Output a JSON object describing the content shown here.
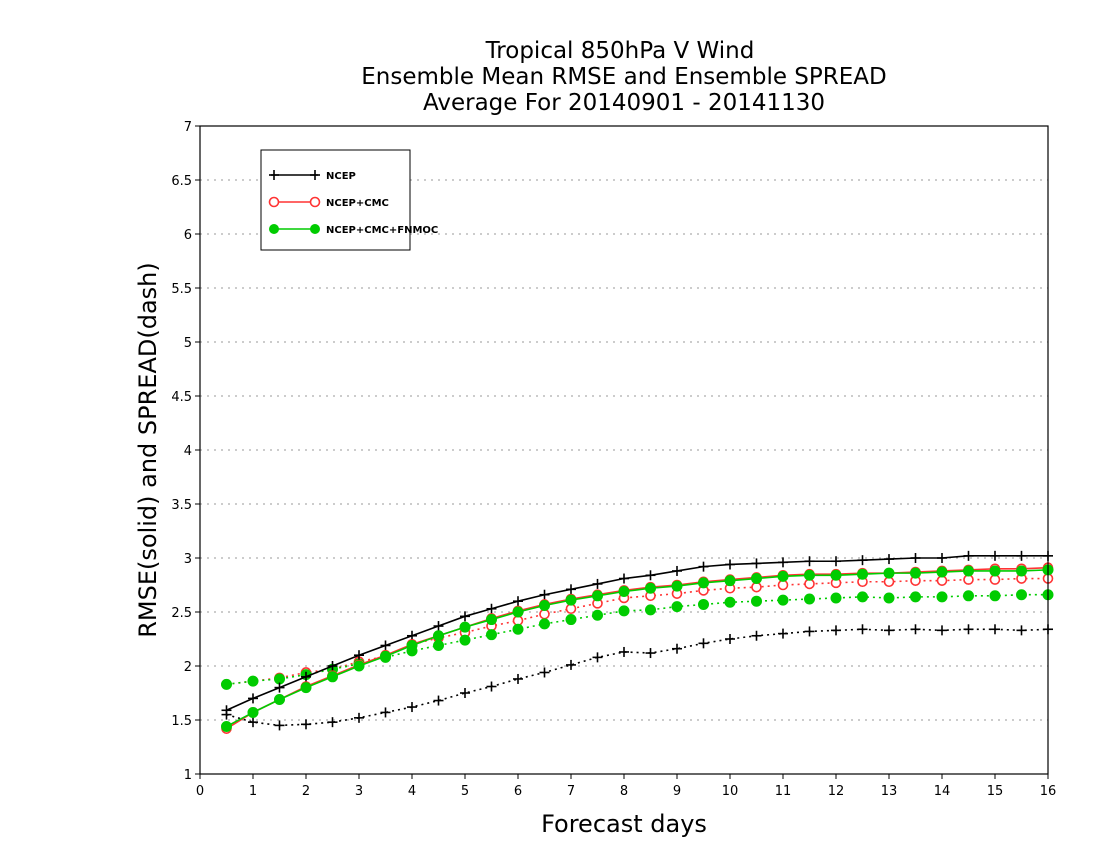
{
  "chart_data": {
    "type": "line",
    "title": [
      "Tropical 850hPa V Wind",
      "Ensemble Mean RMSE and Ensemble SPREAD",
      "Average For 20140901 - 20141130"
    ],
    "xlabel": "Forecast days",
    "ylabel": "RMSE(solid) and SPREAD(dash)",
    "xlim": [
      0,
      16
    ],
    "ylim": [
      1,
      7
    ],
    "xticks": [
      0,
      1,
      2,
      3,
      4,
      5,
      6,
      7,
      8,
      9,
      10,
      11,
      12,
      13,
      14,
      15,
      16
    ],
    "yticks": [
      "1",
      "1.5",
      "2",
      "2.5",
      "3",
      "3.5",
      "4",
      "4.5",
      "5",
      "5.5",
      "6",
      "6.5",
      "7"
    ],
    "grid": "horizontal dotted",
    "legend_placement": "top-left",
    "x": [
      0.5,
      1,
      1.5,
      2,
      2.5,
      3,
      3.5,
      4,
      4.5,
      5,
      5.5,
      6,
      6.5,
      7,
      7.5,
      8,
      8.5,
      9,
      9.5,
      10,
      10.5,
      11,
      11.5,
      12,
      12.5,
      13,
      13.5,
      14,
      14.5,
      15,
      15.5,
      16
    ],
    "series": [
      {
        "name": "NCEP",
        "kind": "RMSE",
        "style": "solid",
        "marker": "plus",
        "color": "#000000",
        "values": [
          1.59,
          1.7,
          1.8,
          1.9,
          2.0,
          2.1,
          2.19,
          2.28,
          2.37,
          2.46,
          2.53,
          2.6,
          2.66,
          2.71,
          2.76,
          2.81,
          2.84,
          2.88,
          2.92,
          2.94,
          2.95,
          2.96,
          2.97,
          2.97,
          2.98,
          2.99,
          3.0,
          3.0,
          3.02,
          3.02,
          3.02,
          3.02
        ]
      },
      {
        "name": "NCEP+CMC",
        "kind": "RMSE",
        "style": "solid",
        "marker": "open-circle",
        "color": "#ff3333",
        "values": [
          1.42,
          1.57,
          1.69,
          1.81,
          1.91,
          2.01,
          2.1,
          2.2,
          2.28,
          2.36,
          2.44,
          2.51,
          2.57,
          2.62,
          2.66,
          2.7,
          2.73,
          2.75,
          2.78,
          2.8,
          2.82,
          2.84,
          2.85,
          2.85,
          2.86,
          2.86,
          2.87,
          2.88,
          2.89,
          2.9,
          2.9,
          2.91
        ]
      },
      {
        "name": "NCEP+CMC+FNMOC",
        "kind": "RMSE",
        "style": "solid",
        "marker": "filled-circle",
        "color": "#00cc00",
        "values": [
          1.44,
          1.57,
          1.69,
          1.8,
          1.9,
          2.0,
          2.09,
          2.19,
          2.28,
          2.36,
          2.43,
          2.5,
          2.56,
          2.61,
          2.65,
          2.69,
          2.72,
          2.74,
          2.77,
          2.79,
          2.81,
          2.83,
          2.84,
          2.84,
          2.85,
          2.86,
          2.86,
          2.87,
          2.88,
          2.88,
          2.88,
          2.89
        ]
      },
      {
        "name": "NCEP",
        "kind": "SPREAD",
        "style": "dash",
        "marker": "plus",
        "color": "#000000",
        "values": [
          1.55,
          1.48,
          1.45,
          1.46,
          1.48,
          1.52,
          1.57,
          1.62,
          1.68,
          1.75,
          1.81,
          1.88,
          1.94,
          2.01,
          2.08,
          2.13,
          2.12,
          2.16,
          2.21,
          2.25,
          2.28,
          2.3,
          2.32,
          2.33,
          2.34,
          2.33,
          2.34,
          2.33,
          2.34,
          2.34,
          2.33,
          2.34
        ]
      },
      {
        "name": "NCEP+CMC",
        "kind": "SPREAD",
        "style": "dash",
        "marker": "open-circle",
        "color": "#ff3333",
        "values": [
          1.83,
          1.86,
          1.89,
          1.94,
          1.97,
          2.04,
          2.09,
          2.2,
          2.26,
          2.31,
          2.37,
          2.42,
          2.48,
          2.53,
          2.58,
          2.63,
          2.65,
          2.67,
          2.7,
          2.72,
          2.73,
          2.75,
          2.76,
          2.77,
          2.78,
          2.78,
          2.79,
          2.79,
          2.8,
          2.8,
          2.81,
          2.81
        ]
      },
      {
        "name": "NCEP+CMC+FNMOC",
        "kind": "SPREAD",
        "style": "dash",
        "marker": "filled-circle",
        "color": "#00cc00",
        "values": [
          1.83,
          1.86,
          1.88,
          1.92,
          1.97,
          2.02,
          2.08,
          2.14,
          2.19,
          2.24,
          2.29,
          2.34,
          2.39,
          2.43,
          2.47,
          2.51,
          2.52,
          2.55,
          2.57,
          2.59,
          2.6,
          2.61,
          2.62,
          2.63,
          2.64,
          2.63,
          2.64,
          2.64,
          2.65,
          2.65,
          2.66,
          2.66
        ]
      }
    ],
    "legend": [
      {
        "label": "NCEP",
        "marker": "plus",
        "color": "#000000"
      },
      {
        "label": "NCEP+CMC",
        "marker": "open-circle",
        "color": "#ff3333"
      },
      {
        "label": "NCEP+CMC+FNMOC",
        "marker": "filled-circle",
        "color": "#00cc00"
      }
    ]
  }
}
